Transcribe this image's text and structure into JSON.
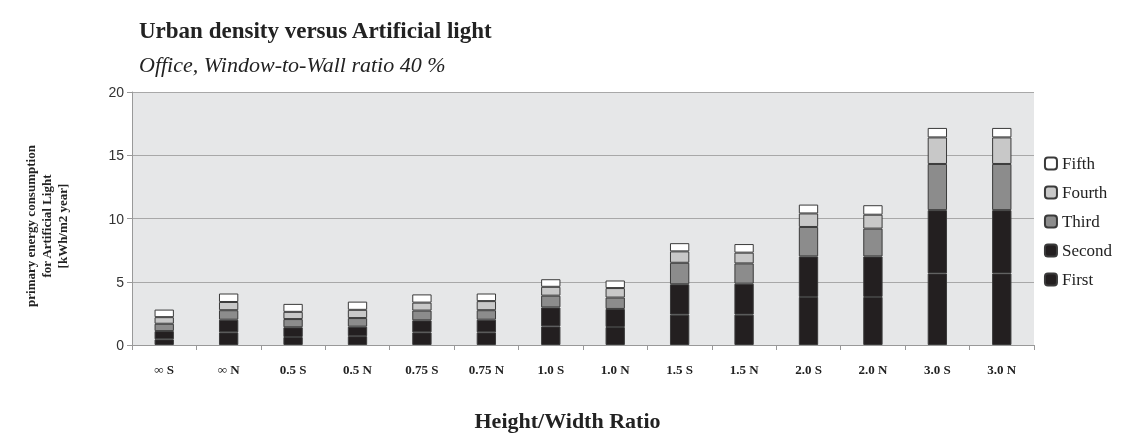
{
  "chart_data": {
    "type": "bar",
    "title": "Urban density versus Artificial light",
    "subtitle": "Office, Window-to-Wall ratio 40 %",
    "xlabel": "Height/Width Ratio",
    "ylabel": "primary energy consumption\nfor Artificial Light\n[kWh/m2 year]",
    "categories": [
      "∞ S",
      "∞ N",
      "0.5 S",
      "0.5 N",
      "0.75 S",
      "0.75 N",
      "1.0 S",
      "1.0 N",
      "1.5 S",
      "1.5 N",
      "2.0 S",
      "2.0 N",
      "3.0 S",
      "3.0 N"
    ],
    "stacked": true,
    "ylim": [
      0,
      20
    ],
    "yticks": [
      0,
      5,
      10,
      15,
      20
    ],
    "grid": "y",
    "legend": "right",
    "series": [
      {
        "name": "First",
        "color": "#231f20",
        "values": [
          0.45,
          1.0,
          0.63,
          0.7,
          1.0,
          1.0,
          1.47,
          1.42,
          2.4,
          2.4,
          3.8,
          3.8,
          5.66,
          5.66
        ]
      },
      {
        "name": "Second",
        "color": "#231f20",
        "values": [
          0.65,
          1.0,
          0.77,
          0.75,
          0.95,
          1.0,
          1.5,
          1.43,
          2.4,
          2.45,
          3.2,
          3.2,
          5.0,
          5.0
        ]
      },
      {
        "name": "Third",
        "color": "#8c8c8c",
        "values": [
          0.58,
          0.75,
          0.65,
          0.68,
          0.77,
          0.75,
          0.93,
          0.9,
          1.7,
          1.6,
          2.33,
          2.2,
          3.65,
          3.65
        ]
      },
      {
        "name": "Fourth",
        "color": "#c8c8c8",
        "values": [
          0.52,
          0.65,
          0.57,
          0.65,
          0.63,
          0.72,
          0.7,
          0.75,
          0.9,
          0.85,
          1.07,
          1.1,
          2.1,
          2.1
        ]
      },
      {
        "name": "Fifth",
        "color": "#ffffff",
        "values": [
          0.6,
          0.67,
          0.63,
          0.65,
          0.65,
          0.6,
          0.6,
          0.6,
          0.65,
          0.68,
          0.7,
          0.75,
          0.75,
          0.75
        ]
      }
    ]
  }
}
